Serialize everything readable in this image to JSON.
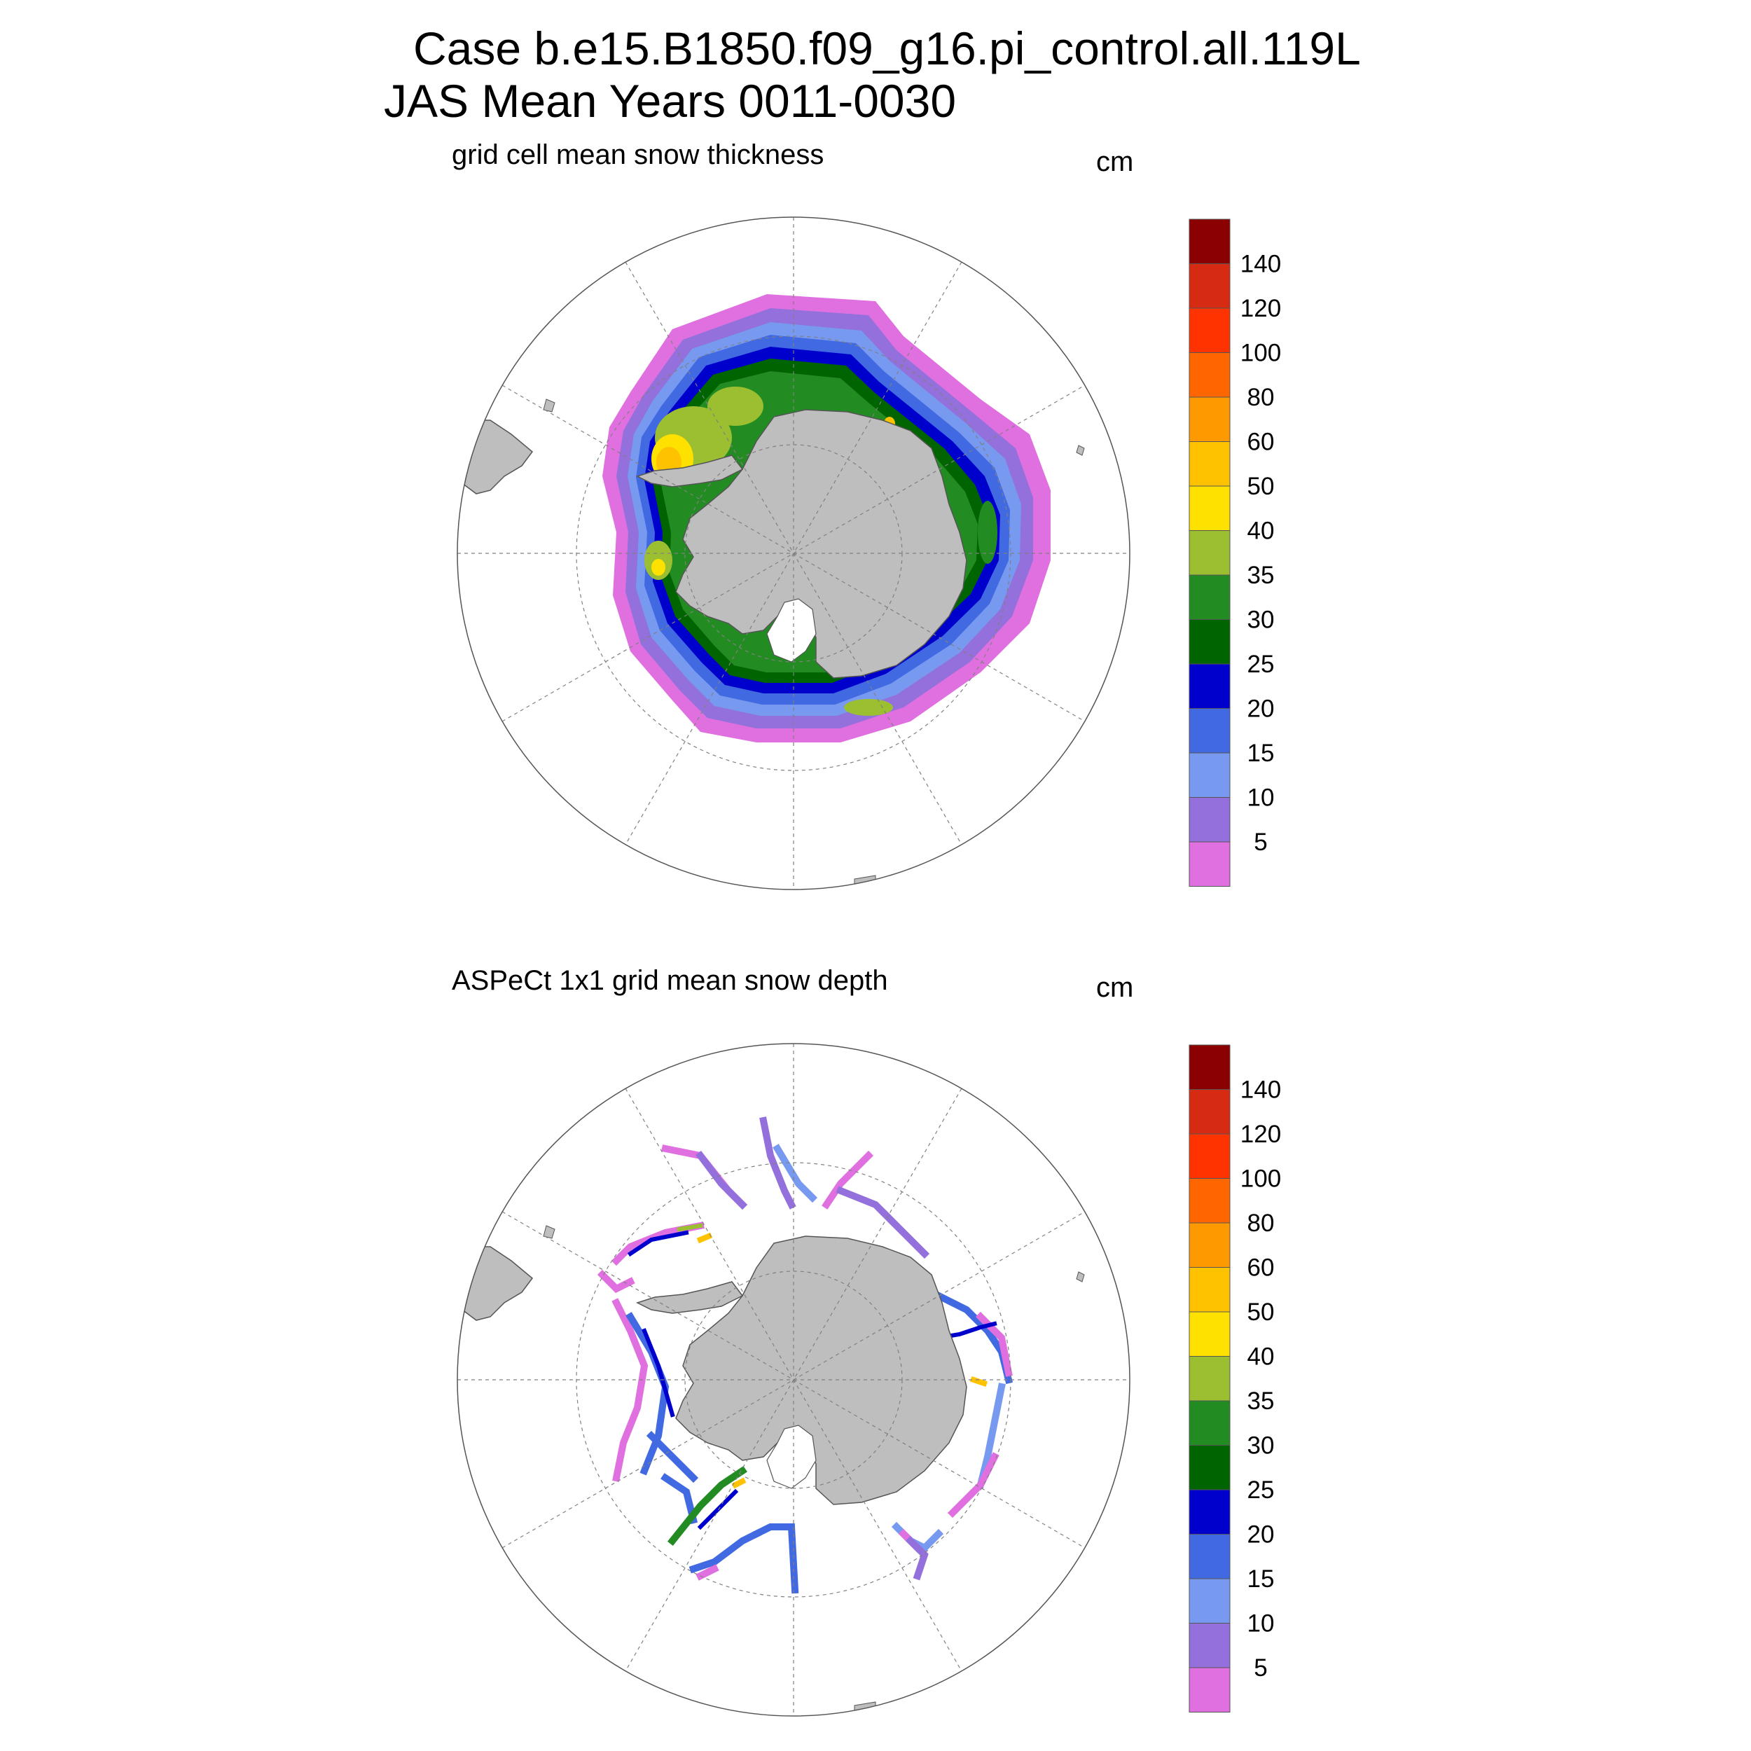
{
  "figure": {
    "title_line1": "Case b.e15.B1850.f09_g16.pi_control.all.119L",
    "title_line2": "JAS Mean   Years 0011-0030"
  },
  "colorbar": {
    "levels": [
      "140",
      "120",
      "100",
      "80",
      "60",
      "50",
      "40",
      "35",
      "30",
      "25",
      "20",
      "15",
      "10",
      "5"
    ],
    "colors": [
      "#8b0000",
      "#d62b12",
      "#ff3300",
      "#ff6600",
      "#ff9900",
      "#ffc200",
      "#ffe100",
      "#9bbf31",
      "#228b22",
      "#006400",
      "#0000cd",
      "#4169e1",
      "#7799f0",
      "#9370db",
      "#e070e0"
    ]
  },
  "colors": {
    "land": "#bebebe",
    "gridline": "#808080"
  },
  "panels": [
    {
      "id": "top",
      "title": "grid cell mean snow thickness",
      "units": "cm",
      "field": "model grid cell mean snow thickness (contour-filled)"
    },
    {
      "id": "bottom",
      "title": "ASPeCt 1x1 grid mean snow depth",
      "units": "cm",
      "field": "ASPeCt ship-track observations (sparse cells)"
    }
  ]
}
